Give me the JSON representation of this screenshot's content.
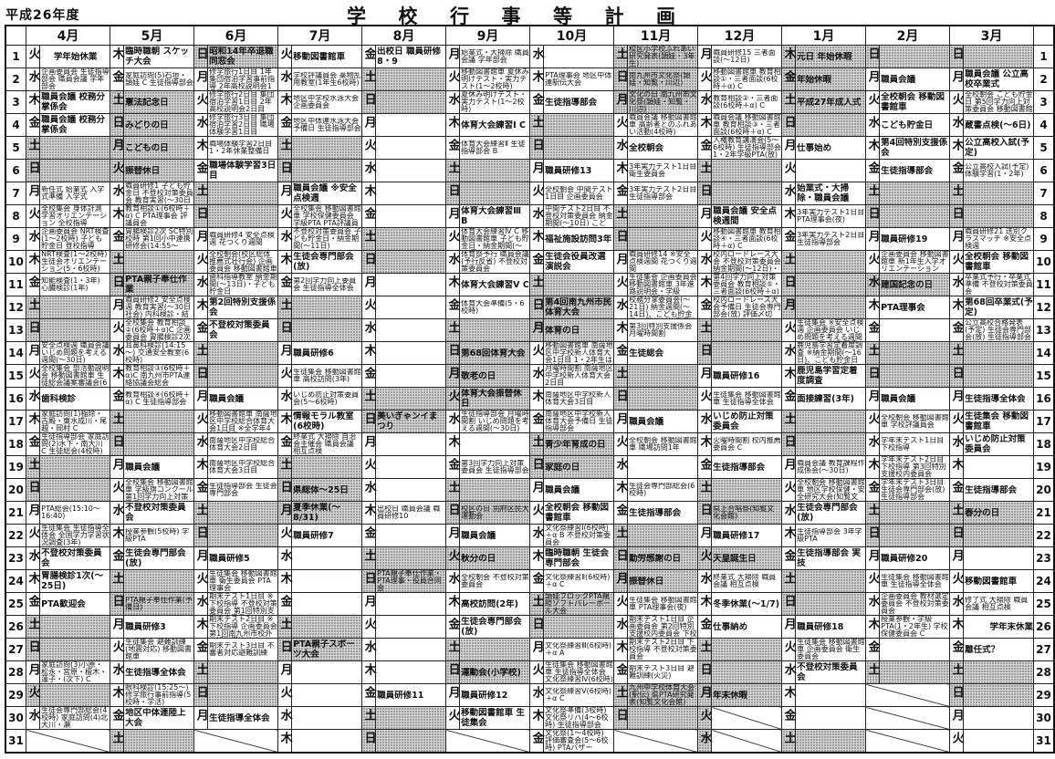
{
  "header": {
    "era": "平成26年度",
    "title_chars": [
      "学",
      "校",
      "行",
      "事",
      "等",
      "計",
      "画"
    ]
  },
  "days": [
    "1",
    "2",
    "3",
    "4",
    "5",
    "6",
    "7",
    "8",
    "9",
    "10",
    "11",
    "12",
    "13",
    "14",
    "15",
    "16",
    "17",
    "18",
    "19",
    "20",
    "21",
    "22",
    "23",
    "24",
    "25",
    "26",
    "27",
    "28",
    "29",
    "30",
    "31"
  ],
  "months": [
    {
      "label": "4月",
      "wd": "火水木金土日月火水木金土日月火水木金土日月火水木金土日月火水",
      "shade": [
        5,
        6,
        12,
        13,
        19,
        20,
        26,
        27,
        29
      ],
      "na": [],
      "ev": [
        "学年始休業",
        "企画委員会 生徒指導部会 職員会議 学年部会",
        "職員会議 校務分掌係会",
        "職員会議 校務分掌係会",
        "",
        "",
        "新任式 始業式 入学式準備 入学式",
        "全校集会 身体計測 学習オリエンテーション 全校指導",
        "企画委員会 NRT検査(1～2校時) 子ども貯金日 登校指導",
        "NRT検査(1～2校時) 生徒会オリエンテーション(5・6校時) PTA理事会(夜)",
        "知能検査(1・3年) 心臓検診(1年)",
        "",
        "",
        "安全点検週 職員会議 いじめ問題を考える週間(～30日)",
        "全校集会 部活動説明会 移動図書館車 生徒総会議案審議会(6校時)",
        "歯科検診",
        "家庭訪問(1)稲除・古殿・東水成川・尾越・岡村 C",
        "生徒指導部会 家庭訪問(2)水下・南大川 C 生徒総会(4校時)",
        "",
        "",
        "PTA総会(15:10～16:40)",
        "生徒集会 生徒指導全体会 全国学力学習状況調査(3年)",
        "不登校対策委員会",
        "胃腸検診1次(～25日)",
        "PTA歓迎会",
        "",
        "",
        "家庭訪問(3)小原・松永・宮原・檀木・蓮子・(次下) C",
        "",
        "生徒会専門部総会(4校時) 家庭訪問(4)北大川・瀬",
        ""
      ]
    },
    {
      "label": "5月",
      "wd": "木金土日月火水木金土日月火水木金土日月火水木金土日月火水木金土",
      "shade": [
        3,
        4,
        5,
        6,
        10,
        11,
        17,
        18,
        24,
        25,
        31
      ],
      "na": [],
      "ev": [
        "臨時職朝 スケッチ大会",
        "家庭訪問(5)石垣・頴娃 C 生徒指導部会",
        "憲法記念日",
        "みどりの日",
        "こどもの日",
        "振替休日",
        "職員研修1 子ども貯金日 不登校対策委員会 教育実習(～30日 理科)",
        "教育相談①(6校時＋α) C PTA理事会 評議員会",
        "胃腸検診2次 SC特別校時 第1回小中連携研修会(14:55～16:40)",
        "",
        "PTA親子奉仕作業",
        "職員研修2 安全点検週 教育実習(～30日 社会) 内科検診・結核検診",
        "全校集会 教育相談②(6校時＋α)C 企画委員会 胃腸検診2次 移動図書館車",
        "耳鼻科検診(14:15～) 交通安全教室(6校時)",
        "教育相談③(6校時＋α)C 南九州市PTA連絡協議会総会",
        "教育相談④(6校時＋α) C 生徒指導部会",
        "",
        "",
        "職員会議",
        "全校集会 移動図書館車 学級旗コンクール 第1回学力向上対策委員会",
        "不登校対策委員会",
        "授業参観(5校時) 学級PTA",
        "生徒会専門部会(放)",
        "",
        "PTA親子奉仕作業(予備日)",
        "職員研修3",
        "生徒集会 避難訓練(地震対応) 移動図書館車",
        "生徒指導全体会",
        "眼科検診(15:25～) 修学旅行事前指導(5校時・学活)",
        "地区中体連陸上大会",
        ""
      ]
    },
    {
      "label": "6月",
      "wd": "日月火水木金土日月火水木金土日月火水木金土日月火水木金土日月",
      "shade": [
        1,
        7,
        8,
        14,
        15,
        21,
        22,
        28,
        29
      ],
      "na": [],
      "ev": [
        "昭和14年卒退職同窓会",
        "修学旅行1日目 1年集団宿泊学習事前指導 2年高校説明会1日目",
        "修学旅行2日目 集団宿泊学習1日目 2年高校説明会2日目",
        "修学旅行3日目 集団宿泊学習2日目 職場体験学習1日目",
        "職場体験学習2日目 1・2年休業整備日",
        "職場体験学習3日目",
        "",
        "",
        "職員研修4 安全点検週 花つくり週間",
        "全校朝会(校区総体推薦式壮行会) 企画委員会 移動図書館車",
        "歯科指導教室 納金期間(～13日)・子ども貯金日",
        "第2回特別支援係会",
        "不登校対策委員会",
        "",
        "",
        "職員会議",
        "移動図書館車 南薩地区中学校総合体育大会1日目 ※全学年4時間授業",
        "南薩地区中学校総合体育大会2日目",
        "南薩地区中学校総合体育大会3日目",
        "生徒指導部会 生徒会専門部会",
        "",
        "",
        "職員研修5",
        "生徒集会 移動図書館車 衛生委員会 PTA理事会",
        "期末テスト1日目 ※下校指導 不登校対策委員会 第1回特別支援校内委員会",
        "期末テスト2日目 ※下校指導 企画委員会 第1回南九州市校外生活指導連絡会",
        "期末テスト3日目 不審者対応避難訓練",
        "",
        "",
        "生徒指導全体会",
        ""
      ]
    },
    {
      "label": "7月",
      "wd": "火水木金土日月火水木金土日月火水木金土日月火水木金土日月火水木",
      "shade": [
        5,
        6,
        12,
        13,
        19,
        20,
        21,
        26,
        27
      ],
      "na": [],
      "ev": [
        "移動図書館車",
        "学校評議員会 薬物乱用教室(1年生6校時)",
        "地区中学校水泳大会 企画委員会",
        "地区中体連水泳大会予備日 生徒指導部会",
        "",
        "",
        "職員会議 ※安全点検週",
        "全校集会 移動図書館車 学校保健委員会 学級PTA PTA評議員会",
        "不登校対策委員会 子ども貯金日・納金期間(～11日)",
        "生徒会専門部会(放)",
        "第2回学力向上委員会 生徒指導全体会",
        "",
        "",
        "職員研修6",
        "生徒集会 移動図書館車 高校訪問(3年)",
        "いじめ防止対策委員会(5～6校時)",
        "情報モラル教室(6校時)",
        "終業式 大掃除 自治会主催会 職員会議 相互点検",
        "",
        "県総体～25日",
        "夏季休業(～8/31)",
        "職員研修7",
        "",
        "",
        "",
        "",
        "PTA親子スポーツ大会",
        "",
        "",
        "",
        ""
      ]
    },
    {
      "label": "8月",
      "wd": "金土日月火水木金土日月火水木金土日月火水木金土日月火水木金土日",
      "shade": [
        2,
        3,
        9,
        10,
        16,
        17,
        23,
        24,
        30,
        31
      ],
      "na": [],
      "ev": [
        "出校日 職員研修8・9",
        "",
        "",
        "",
        "",
        "",
        "",
        "",
        "",
        "",
        "",
        "",
        "",
        "",
        "",
        "",
        "美いぎゃンイまつり",
        "",
        "",
        "",
        "出校日 職員会議 職員研修10",
        "",
        "",
        "PTA親子奉仕作業・PTA理事・役員合同会",
        "",
        "",
        "",
        "",
        "職員研修11",
        "",
        ""
      ]
    },
    {
      "label": "9月",
      "wd": "月火水木金土日月火水木金土日月火水木金土日月火水木金土日月火",
      "shade": [
        6,
        7,
        13,
        14,
        15,
        16,
        20,
        21,
        23,
        27,
        28
      ],
      "na": [],
      "ev": [
        "始業式・大掃除 職員会議 学年部会",
        "移動図書館車 夏休み明けテスト・実力テスト(1～2校時)",
        "夏休み明けテスト・実力テスト(1～2校時)",
        "体育大会練習Ⅰ C",
        "体育大会練習Ⅱ 生徒指導部会 B",
        "",
        "",
        "体育大会練習Ⅲ B",
        "体育大会練習Ⅳ C 移動図書館車 子ども貯金日・納金期間(～12日)",
        "体育祭予行 職員会議(予行反省) 不登校対策委員会",
        "体育大会練習Ⅴ C",
        "体育大会準備(5・6校時)",
        "",
        "第68回体育大会",
        "敬老の日",
        "体育大会振替休日",
        "生徒指導部会 月曜時間割 いじめ問題を考える週間(～30日)",
        "",
        "第3回学力向上対策委員会 生徒指導部会",
        "",
        "校区の日 別府区民大運動会",
        "職員会議",
        "秋分の日",
        "全校朝会 不登校対策委員会",
        "高校訪問(2年)",
        "生徒会専門部会(放)",
        "",
        "運動会(小学校)",
        "職員研修12",
        "移動図書館車 生徒集会",
        ""
      ]
    },
    {
      "label": "10月",
      "wd": "水木金土日月火水木金土日月火水木金土日月火水木金土日月火水木金",
      "shade": [
        4,
        5,
        11,
        12,
        13,
        18,
        19,
        25,
        26
      ],
      "na": [],
      "ev": [
        "",
        "PTA理事会 地区中体連駅伝大会",
        "生徒指導部会",
        "",
        "",
        "職員研修13",
        "全校朝会 中間テスト1日目 企画委員会",
        "中間テスト2日目 不登校対策委員会 納金期間(～10日) こども貯金日",
        "福祉施設訪問3年",
        "生徒会役員改選演説会",
        "",
        "第4回南九州市民体育大会",
        "体育の日",
        "移動図書館車 南薩地区中学校新人体育大会1日目 1・2年生は4校時まで(給食無し)",
        "月曜時間割 南薩地区中学校新人体育大会2日目",
        "南薩地区中学校新人体育大会3日目",
        "南薩地区中学校新人体育大会予備日 生徒指導部会",
        "青少年育成の日",
        "家庭の日",
        "職員会議",
        "全校朝会 移動図書館車",
        "文化祭練習Ⅰ(6校時)＋α B 不登校対策委員会",
        "臨時職朝 生徒会専門部会",
        "文化祭練習Ⅱ(6校時)＋α C",
        "頴娃ブロックPTA親睦ソフトバレーボール大会",
        "",
        "文化祭練習Ⅲ(6校時)＋α A",
        "生徒集会 移動図書館車 生徒指導全体会 文化祭練習Ⅳ(6校時)＋α B",
        "文化祭練習Ⅴ(6校時)＋α C",
        "文化祭準備(3校時) 文化祭リハ(4～6校時) 生徒指導部会",
        "文化祭(1～4校時) 評価審査会(5～6校時) PTAバザー"
      ]
    },
    {
      "label": "11月",
      "wd": "土日月火水木金土日月火水木金土日月火水木金土日月火水木金土日",
      "shade": [
        1,
        2,
        3,
        8,
        9,
        15,
        16,
        22,
        23,
        24,
        29,
        30
      ],
      "na": [],
      "ev": [
        "校区小学校ふれあい研究発表(頴娃・3年生)",
        "南九州市文化祭(頴娃・知覧・川辺)",
        "文化の日 南九州市文化祭(頴娃・知覧・川辺)",
        "職員会議 移動図書館車 高齢者とのふれあい活動(4校時)",
        "全校朝会",
        "3年実力テスト1日目 衛生委員会",
        "3年実力テスト2日目 生徒指導部会",
        "",
        "",
        "職員研修14 ※安全点検週間 花つくり週間",
        "生徒集会 企画委員会 移動図書館車 3年進路説明会・学級PTA(6校時＋α)",
        "校務分掌委員会(～21日) 納金週間(～14日)、こども貯金日 不登校対策委員会",
        "第3回特別支援係会 月曜時間割",
        "生徒総会",
        "",
        "",
        "職員会議",
        "全校朝会 移動図書館車 職場訪問1年",
        "",
        "生徒会専門部総会(6校時)",
        "生徒指導部会",
        "",
        "勤労感謝の日",
        "振替休日",
        "生徒集会 移動図書館車 PTA理事会(夜)",
        "期末テスト1日目 企画委員会 第2回特別支援校内委員会 下校指導",
        "期末テスト2日目 下校指導 不登校対策委員会",
        "期末テスト3日目 避難訓練(火災)",
        "九州中学校体育大会(駅伝) 県PTA研究発表(知覧文化会館)",
        "",
        ""
      ]
    },
    {
      "label": "12月",
      "wd": "月火水木金土日月火水木金土日月火水木金土日月火水木金土日月火水",
      "shade": [
        6,
        7,
        13,
        14,
        20,
        21,
        23,
        27,
        28,
        29,
        30,
        31
      ],
      "na": [
        30,
        31
      ],
      "ev": [
        "職員研修15 三者面談(～12日)",
        "移動図書館車 教育相談①・三者面談(6校時＋α) C",
        "教育相談②・三者面談(6校時＋α) C",
        "職員会議 移動図書館車 教育相談③・三者面談(6校時＋α) C",
        "人権教育講演会(5～6校時) 生徒指導部会 1・2年学級PTA(放)",
        "",
        "",
        "職員会議 安全点検週間",
        "移動図書館車 教育相談④・三者面談(6校時＋α) C",
        "校内ロードレース大会 不登校対策委員会 納金期間(～12日)・子ども貯金日",
        "第4回学力向上対策委員会 教育相談⑤・三者面談(6校時＋α) C",
        "校内ロードレース大会予備日 生徒会専門部会(放) 評価〆切",
        "",
        "",
        "職員研修16",
        "生徒集会 移動図書館車 生徒指導全体会",
        "いじめ防止対策委員会",
        "火曜時間割 校内推薦委員会 C",
        "生徒指導部会",
        "",
        "県上合唱祭(知覧文化会館)",
        "職員研修17",
        "天皇誕生日",
        "終業式 大掃除 職員会議 相互点検",
        "冬季休業(～1/7)",
        "仕事納め",
        "",
        "",
        "年末休暇",
        "",
        ""
      ]
    },
    {
      "label": "1月",
      "wd": "木金土日月火水木金土日月火水木金土日月火水木金土日月火水木金土",
      "shade": [
        1,
        2,
        3,
        4,
        10,
        11,
        12,
        17,
        18,
        24,
        25,
        31
      ],
      "na": [],
      "ev": [
        "元日 年始休暇",
        "年始休暇",
        "平成27年成人式",
        "",
        "仕事始め",
        "",
        "始業式・大掃除・職員会議",
        "3年実力テスト1日目 PTA理事会(夜)",
        "3年実力テスト2日目 生徒指導部会",
        "",
        "",
        "",
        "生徒集会 ※安全点検週 企画委員会 いじめ問題を考える週間(～31日) 移動図書館車",
        "鹿児島学習定着度調査 ※納金期間(～16日)、こども貯金日 不登校対策委員会",
        "鹿児島学習定着度調査",
        "面接練習(3年)",
        "",
        "",
        "職員会議 教育課程作成係会(～30日)",
        "全校朝会 移動図書館車 地区学校保健・安全研究大会(知覧文化会館)",
        "生徒会専門部会(放)",
        "生徒指導部会 3年学級PTA",
        "生徒指導部会 実技",
        "",
        "",
        "職員研修18",
        "生徒集会 移動図書館車 企画委員会 衛生委員会",
        "不登校対策委員会",
        "",
        "",
        ""
      ]
    },
    {
      "label": "2月",
      "wd": "日月火水木金土日月火水木金土日月火水木金土日月火水木金土",
      "shade": [
        1,
        7,
        8,
        11,
        14,
        15,
        21,
        22,
        28
      ],
      "na": [],
      "ev": [
        "",
        "職員会議",
        "全校朝会 移動図書館車",
        "こども貯金日",
        "第4回特別支援係会",
        "生徒指導部会",
        "",
        "",
        "職員研修19",
        "企画委員会 移動図書館車 新1年生入学オリエンテーション",
        "建国記念の日",
        "PTA理事会",
        "",
        "",
        "",
        "職員会議",
        "全校朝会 移動図書館車 学校評議員会",
        "学年末テスト1日目 下校指導",
        "学年末テスト2日目 下校指導 第3回特別支援校内委員会",
        "学年末テスト3日目 生徒会専門部会(放) 生徒指導部会",
        "",
        "",
        "職員研修20",
        "生徒集会 移動図書館車 生徒指導全体会",
        "企画委員会 教材選定委員会 不登校対策委員会",
        "授業参観・学級PTA(1・2年生) 学校保健委員会 C",
        "",
        ""
      ]
    },
    {
      "label": "3月",
      "wd": "日月火水木金土日月火水木金土日月火水木金土日月火水木金土日月火",
      "shade": [
        1,
        7,
        8,
        14,
        15,
        21,
        22,
        28,
        29
      ],
      "na": [],
      "ev": [
        "",
        "職員会議 公立高校卒業式",
        "全校朝会 こども貯金日 第5回学力向上対策委員会 移動図書館車",
        "蔵書点検(～6日)",
        "公立高校入試(予定)",
        "公立高校入試(予定) 体験学習(1・2年)",
        "",
        "",
        "職員研修21 送別クラスマッチ ※安全点検週",
        "全校朝会 移動図書館車",
        "卒業式予行・卒業式準備 不登校対策委員会",
        "第68回卒業式(予定)",
        "公立高校合格発表(予定) 生徒会専門部会(放) 生徒指導部会",
        "",
        "",
        "生徒指導全体会",
        "生徒集会 移動図書館車",
        "いじめ防止対策委員会",
        "",
        "生徒指導部会",
        "春分の日",
        "",
        "",
        "移動図書館車",
        "修了式 大掃除 職員会議 相互点検",
        "学年末休業",
        "離任式？",
        "",
        "",
        "",
        ""
      ]
    }
  ]
}
